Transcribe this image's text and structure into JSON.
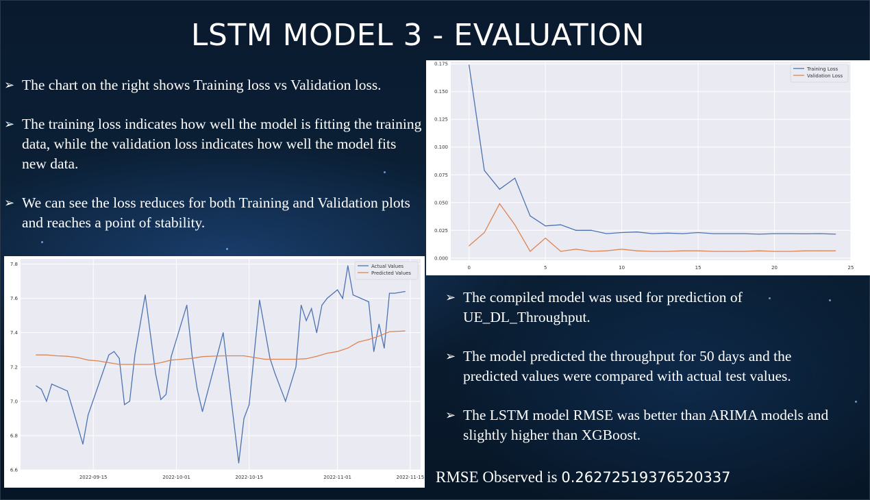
{
  "slide": {
    "title": "LSTM MODEL 3 - EVALUATION",
    "left_bullets": [
      "The chart on the right shows Training loss vs Validation loss.",
      "The training loss indicates how well the model is fitting the training data, while the validation loss indicates how well the model fits new data.",
      "We can see the loss reduces for both Training and Validation plots and reaches a point of stability."
    ],
    "right_bullets": [
      "The compiled model was used for prediction of UE_DL_Throughput.",
      "The model predicted the throughput for 50 days and the predicted values were compared with actual test values.",
      "The LSTM model RMSE was better than ARIMA models and slightly higher than XGBoost."
    ],
    "rmse_label": "RMSE Observed is",
    "rmse_value": "0.26272519376520337",
    "bullet_icon": "arrowhead-bullet-icon"
  },
  "colors": {
    "series_blue": "#4c72b0",
    "series_orange": "#dd8452",
    "plot_bg": "#eaeaf2"
  },
  "chart_data": [
    {
      "type": "line",
      "title": "",
      "xlabel": "",
      "ylabel": "",
      "xlim": [
        -1.2,
        25
      ],
      "ylim": [
        -0.002,
        0.177
      ],
      "x_ticks": [
        0,
        5,
        10,
        15,
        20,
        25
      ],
      "y_ticks": [
        0.0,
        0.025,
        0.05,
        0.075,
        0.1,
        0.125,
        0.15,
        0.175
      ],
      "x_tick_labels": [
        "0",
        "5",
        "10",
        "15",
        "20",
        "25"
      ],
      "y_tick_labels": [
        "0.000",
        "0.025",
        "0.050",
        "0.075",
        "0.100",
        "0.125",
        "0.150",
        "0.175"
      ],
      "grid": true,
      "legend_position": "top-right",
      "x": [
        0,
        1,
        2,
        3,
        4,
        5,
        6,
        7,
        8,
        9,
        10,
        11,
        12,
        13,
        14,
        15,
        16,
        17,
        18,
        19,
        20,
        21,
        22,
        23,
        24
      ],
      "series": [
        {
          "name": "Training Loss",
          "color": "#4c72b0",
          "values": [
            0.174,
            0.079,
            0.062,
            0.072,
            0.038,
            0.029,
            0.03,
            0.025,
            0.025,
            0.022,
            0.023,
            0.0235,
            0.022,
            0.0225,
            0.022,
            0.023,
            0.022,
            0.022,
            0.022,
            0.0215,
            0.022,
            0.022,
            0.0218,
            0.022,
            0.0215
          ]
        },
        {
          "name": "Validation Loss",
          "color": "#dd8452",
          "values": [
            0.011,
            0.023,
            0.049,
            0.03,
            0.006,
            0.018,
            0.006,
            0.008,
            0.006,
            0.0065,
            0.008,
            0.0065,
            0.006,
            0.006,
            0.0065,
            0.0065,
            0.006,
            0.006,
            0.006,
            0.0065,
            0.006,
            0.006,
            0.0065,
            0.0065,
            0.0065
          ]
        }
      ]
    },
    {
      "type": "line",
      "title": "",
      "xlabel": "",
      "ylabel": "",
      "x_is_date": true,
      "xlim": [
        "2022-09-01",
        "2022-11-17"
      ],
      "ylim": [
        6.6,
        7.83
      ],
      "x_ticks": [
        "2022-09-15",
        "2022-10-01",
        "2022-10-15",
        "2022-11-01",
        "2022-11-15"
      ],
      "y_ticks": [
        6.6,
        6.8,
        7.0,
        7.2,
        7.4,
        7.6,
        7.8
      ],
      "x_tick_labels": [
        "2022-09-15",
        "2022-10-01",
        "2022-10-15",
        "2022-11-01",
        "2022-11-15"
      ],
      "y_tick_labels": [
        "6.6",
        "6.8",
        "7.0",
        "7.2",
        "7.4",
        "7.6",
        "7.8"
      ],
      "grid": true,
      "legend_position": "top-right",
      "series": [
        {
          "name": "Actual Values",
          "color": "#4c72b0",
          "x": [
            "2022-09-04",
            "2022-09-05",
            "2022-09-06",
            "2022-09-07",
            "2022-09-10",
            "2022-09-11",
            "2022-09-13",
            "2022-09-14",
            "2022-09-18",
            "2022-09-19",
            "2022-09-20",
            "2022-09-21",
            "2022-09-22",
            "2022-09-23",
            "2022-09-25",
            "2022-09-27",
            "2022-09-28",
            "2022-09-29",
            "2022-09-30",
            "2022-10-03",
            "2022-10-04",
            "2022-10-05",
            "2022-10-06",
            "2022-10-10",
            "2022-10-13",
            "2022-10-14",
            "2022-10-15",
            "2022-10-17",
            "2022-10-19",
            "2022-10-20",
            "2022-10-22",
            "2022-10-24",
            "2022-10-25",
            "2022-10-26",
            "2022-10-27",
            "2022-10-28",
            "2022-10-29",
            "2022-10-30",
            "2022-11-01",
            "2022-11-02",
            "2022-11-03",
            "2022-11-04",
            "2022-11-07",
            "2022-11-08",
            "2022-11-09",
            "2022-11-10",
            "2022-11-11",
            "2022-11-12",
            "2022-11-14"
          ],
          "values": [
            7.09,
            7.07,
            7.0,
            7.1,
            7.06,
            6.96,
            6.75,
            6.92,
            7.27,
            7.29,
            7.25,
            6.98,
            7.0,
            7.27,
            7.62,
            7.16,
            7.01,
            7.04,
            7.26,
            7.56,
            7.27,
            7.07,
            6.94,
            7.4,
            6.64,
            6.9,
            6.98,
            7.59,
            7.25,
            7.16,
            7.0,
            7.2,
            7.56,
            7.47,
            7.54,
            7.4,
            7.56,
            7.6,
            7.65,
            7.6,
            7.79,
            7.62,
            7.58,
            7.29,
            7.45,
            7.31,
            7.63,
            7.63,
            7.64
          ]
        },
        {
          "name": "Predicted Values",
          "color": "#dd8452",
          "x": [
            "2022-09-04",
            "2022-09-06",
            "2022-09-08",
            "2022-09-10",
            "2022-09-12",
            "2022-09-14",
            "2022-09-16",
            "2022-09-18",
            "2022-09-20",
            "2022-09-22",
            "2022-09-24",
            "2022-09-26",
            "2022-09-28",
            "2022-09-30",
            "2022-10-02",
            "2022-10-04",
            "2022-10-06",
            "2022-10-08",
            "2022-10-10",
            "2022-10-12",
            "2022-10-14",
            "2022-10-16",
            "2022-10-18",
            "2022-10-20",
            "2022-10-22",
            "2022-10-24",
            "2022-10-26",
            "2022-10-28",
            "2022-10-30",
            "2022-11-01",
            "2022-11-03",
            "2022-11-05",
            "2022-11-07",
            "2022-11-09",
            "2022-11-11",
            "2022-11-14"
          ],
          "values": [
            7.27,
            7.27,
            7.265,
            7.262,
            7.255,
            7.24,
            7.235,
            7.225,
            7.215,
            7.215,
            7.215,
            7.215,
            7.225,
            7.24,
            7.245,
            7.25,
            7.26,
            7.263,
            7.265,
            7.265,
            7.265,
            7.255,
            7.245,
            7.245,
            7.245,
            7.245,
            7.248,
            7.262,
            7.28,
            7.29,
            7.31,
            7.345,
            7.36,
            7.38,
            7.405,
            7.41
          ]
        }
      ]
    }
  ]
}
